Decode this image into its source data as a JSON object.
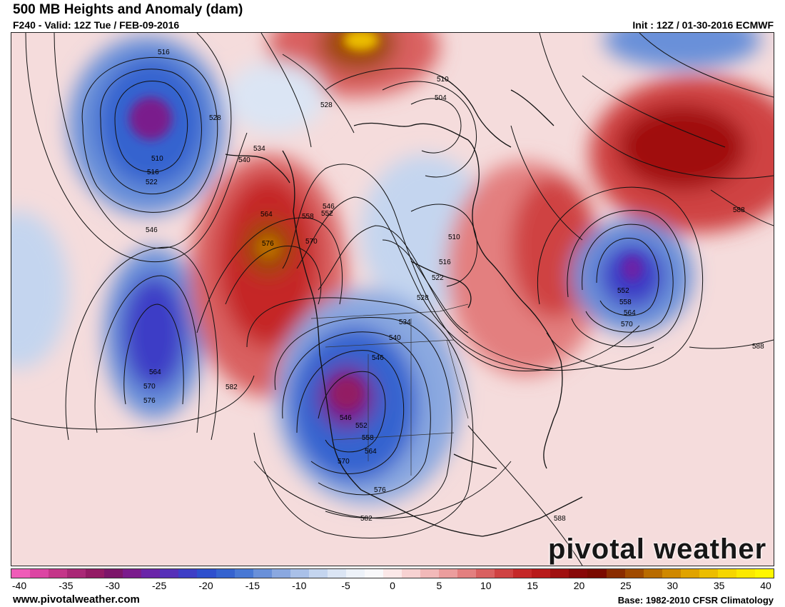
{
  "header": {
    "title": "500 MB Heights and Anomaly (dam)",
    "valid": "F240 - Valid: 12Z Tue / FEB-09-2016",
    "init": "Init : 12Z / 01-30-2016 ECMWF"
  },
  "footer": {
    "website": "www.pivotalweather.com",
    "climatology": "Base: 1982-2010 CFSR Climatology"
  },
  "brand": "pivotal weather",
  "colorbar": {
    "ticks": [
      "-40",
      "-35",
      "-30",
      "-25",
      "-20",
      "-15",
      "-10",
      "-5",
      "0",
      "5",
      "10",
      "15",
      "20",
      "25",
      "30",
      "35",
      "40"
    ],
    "colors": [
      "#ef5cb8",
      "#dc45a3",
      "#c43689",
      "#a92876",
      "#931b64",
      "#7c1669",
      "#7a1b8c",
      "#6a24a8",
      "#5630b8",
      "#3e3ec6",
      "#2e4fcd",
      "#3563cf",
      "#4878d4",
      "#6990d9",
      "#8aa8e0",
      "#a9c0e8",
      "#c4d5ef",
      "#dbe5f4",
      "#edf2f9",
      "#f8f8fa",
      "#fbe8e8",
      "#f7d2d2",
      "#f2b9b9",
      "#eb9d9d",
      "#e37f7f",
      "#d96060",
      "#cf4242",
      "#c52828",
      "#b81a1a",
      "#a01010",
      "#880808",
      "#7a0a00",
      "#8a2c00",
      "#a04a00",
      "#b86b00",
      "#cf8800",
      "#e0a300",
      "#ecbd00",
      "#f6d600",
      "#fbe900",
      "#fff700"
    ]
  },
  "contour_labels": [
    {
      "text": "516",
      "id": "lbl-516-nw"
    },
    {
      "text": "528",
      "id": "lbl-528-n"
    },
    {
      "text": "510",
      "id": "lbl-510-ne"
    },
    {
      "text": "504",
      "id": "lbl-504-ne"
    },
    {
      "text": "528",
      "id": "lbl-528-yukon"
    },
    {
      "text": "534",
      "id": "lbl-534-ak"
    },
    {
      "text": "540",
      "id": "lbl-540-ak"
    },
    {
      "text": "510",
      "id": "lbl-510-low"
    },
    {
      "text": "516",
      "id": "lbl-516-low"
    },
    {
      "text": "522",
      "id": "lbl-522-low"
    },
    {
      "text": "546",
      "id": "lbl-546-w"
    },
    {
      "text": "564",
      "id": "lbl-564-ridge"
    },
    {
      "text": "558",
      "id": "lbl-558-ridge"
    },
    {
      "text": "546",
      "id": "lbl-546-bc"
    },
    {
      "text": "552",
      "id": "lbl-552-bc"
    },
    {
      "text": "576",
      "id": "lbl-576-ridge"
    },
    {
      "text": "570",
      "id": "lbl-570-ridge"
    },
    {
      "text": "510",
      "id": "lbl-510-can"
    },
    {
      "text": "516",
      "id": "lbl-516-can"
    },
    {
      "text": "522",
      "id": "lbl-522-can"
    },
    {
      "text": "528",
      "id": "lbl-528-can"
    },
    {
      "text": "534",
      "id": "lbl-534-us"
    },
    {
      "text": "540",
      "id": "lbl-540-us"
    },
    {
      "text": "546",
      "id": "lbl-546-us"
    },
    {
      "text": "552",
      "id": "lbl-552-atl"
    },
    {
      "text": "558",
      "id": "lbl-558-atl"
    },
    {
      "text": "564",
      "id": "lbl-564-atl"
    },
    {
      "text": "570",
      "id": "lbl-570-atl"
    },
    {
      "text": "588",
      "id": "lbl-588-ne"
    },
    {
      "text": "588",
      "id": "lbl-588-atl"
    },
    {
      "text": "564",
      "id": "lbl-564-pac"
    },
    {
      "text": "570",
      "id": "lbl-570-pac"
    },
    {
      "text": "576",
      "id": "lbl-576-pac"
    },
    {
      "text": "582",
      "id": "lbl-582-pac"
    },
    {
      "text": "546",
      "id": "lbl-546-sw"
    },
    {
      "text": "552",
      "id": "lbl-552-sw"
    },
    {
      "text": "558",
      "id": "lbl-558-sw"
    },
    {
      "text": "564",
      "id": "lbl-564-sw"
    },
    {
      "text": "570",
      "id": "lbl-570-sw"
    },
    {
      "text": "576",
      "id": "lbl-576-mx"
    },
    {
      "text": "582",
      "id": "lbl-582-mx"
    },
    {
      "text": "588",
      "id": "lbl-588-car"
    }
  ]
}
